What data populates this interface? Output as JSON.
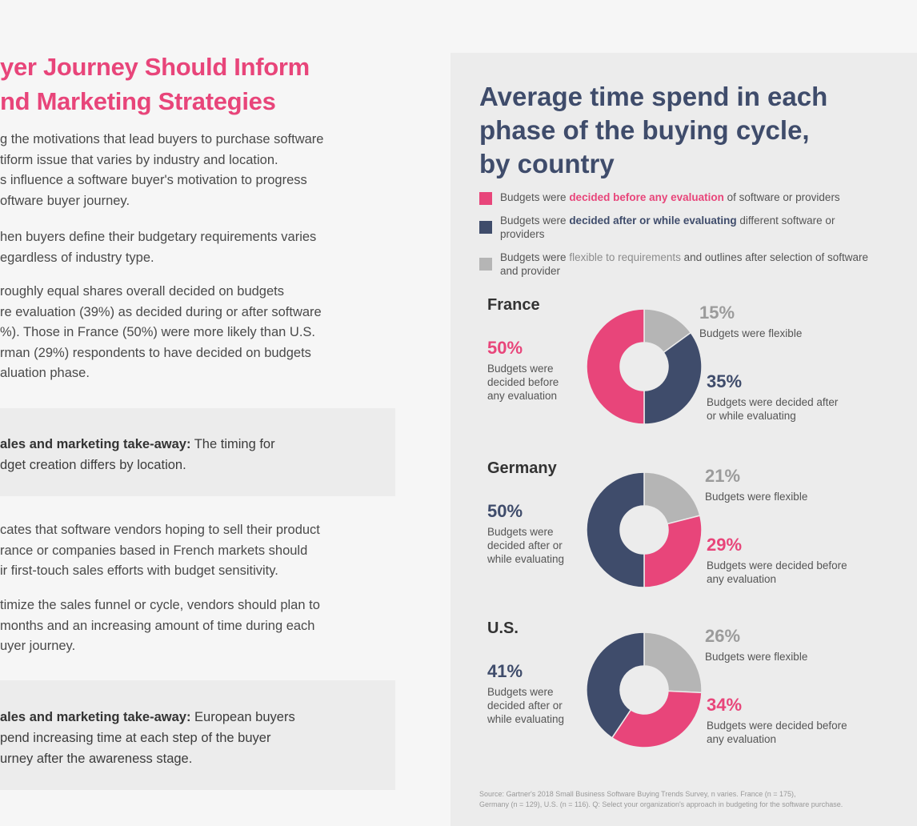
{
  "left": {
    "headline": [
      "yer Journey Should Inform",
      "nd Marketing Strategies"
    ],
    "para1": [
      "g the motivations that lead buyers to purchase software",
      "tiform issue that varies by industry and location.",
      "s influence a software buyer's motivation to progress",
      "oftware buyer journey."
    ],
    "para2": [
      "hen buyers define their budgetary requirements varies",
      "egardless of industry type."
    ],
    "para3": [
      "roughly equal shares overall decided on budgets",
      "re evaluation (39%) as decided during or after software",
      "%). Those in France (50%) were more likely than U.S.",
      "rman (29%) respondents to have decided on budgets",
      "aluation phase."
    ],
    "callout1": {
      "bold": "ales and marketing take-away:",
      "rest": " The timing for",
      "line2": "dget creation differs by location."
    },
    "para4": [
      "cates that software vendors hoping to sell their product",
      "rance or companies based in French markets should",
      "ir first-touch sales efforts with budget sensitivity."
    ],
    "para5": [
      "timize the sales funnel or cycle, vendors should plan to",
      " months and an increasing amount of time during each",
      "uyer journey."
    ],
    "callout2": {
      "bold": "ales and marketing take-away:",
      "rest": " European buyers",
      "line2": "pend increasing time at each step of the buyer",
      "line3": "urney after the awareness stage."
    }
  },
  "panel": {
    "title": [
      "Average time spend in each",
      "phase of the buying cycle,",
      "by country"
    ],
    "legend": [
      {
        "pre": "Budgets were ",
        "hl": "decided before any evaluation",
        "post": " of software or providers",
        "cls": "pink"
      },
      {
        "pre": "Budgets were ",
        "hl": "decided after or while evaluating",
        "post": " different software or providers",
        "cls": "navy"
      },
      {
        "pre": "Budgets were ",
        "hl": "flexible to requirements",
        "post": " and outlines after selection of software and provider",
        "cls": "gray"
      }
    ],
    "source": [
      "Source: Gartner's 2018 Small Business Software Buying Trends Survey, n varies. France (n = 175),",
      "Germany (n = 129), U.S. (n = 116). Q: Select your organization's approach in budgeting for the software purchase."
    ]
  },
  "colors": {
    "pink": "#e8457a",
    "navy": "#3f4c6b",
    "gray": "#b5b5b5"
  },
  "chart_data": {
    "type": "pie",
    "title": "Average time spend in each phase of the buying cycle, by country",
    "series": [
      {
        "name": "France",
        "big": {
          "pct": "50%",
          "label": [
            "Budgets were",
            "decided before",
            "any evaluation"
          ],
          "key": "pink"
        },
        "top": {
          "pct": "15%",
          "label": [
            "Budgets were flexible"
          ],
          "key": "gray"
        },
        "mid": {
          "pct": "35%",
          "label": [
            "Budgets were decided after",
            "or while evaluating"
          ],
          "key": "navy"
        },
        "slices": [
          {
            "key": "gray",
            "value": 15
          },
          {
            "key": "navy",
            "value": 35
          },
          {
            "key": "pink",
            "value": 50
          }
        ]
      },
      {
        "name": "Germany",
        "big": {
          "pct": "50%",
          "label": [
            "Budgets were",
            "decided after or",
            "while evaluating"
          ],
          "key": "navy"
        },
        "top": {
          "pct": "21%",
          "label": [
            "Budgets were flexible"
          ],
          "key": "gray"
        },
        "mid": {
          "pct": "29%",
          "label": [
            "Budgets were decided before",
            "any evaluation"
          ],
          "key": "pink"
        },
        "slices": [
          {
            "key": "gray",
            "value": 21
          },
          {
            "key": "pink",
            "value": 29
          },
          {
            "key": "navy",
            "value": 50
          }
        ]
      },
      {
        "name": "U.S.",
        "big": {
          "pct": "41%",
          "label": [
            "Budgets were",
            "decided after or",
            "while evaluating"
          ],
          "key": "navy"
        },
        "top": {
          "pct": "26%",
          "label": [
            "Budgets were flexible"
          ],
          "key": "gray"
        },
        "mid": {
          "pct": "34%",
          "label": [
            "Budgets were decided before",
            "any evaluation"
          ],
          "key": "pink"
        },
        "slices": [
          {
            "key": "gray",
            "value": 26
          },
          {
            "key": "pink",
            "value": 34
          },
          {
            "key": "navy",
            "value": 41
          }
        ]
      }
    ]
  }
}
